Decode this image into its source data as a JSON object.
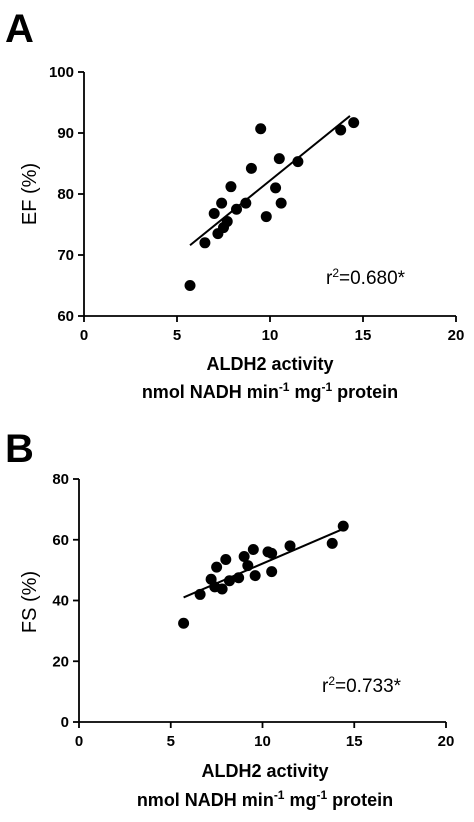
{
  "chart_data": [
    {
      "panel": "A",
      "type": "scatter",
      "ylabel": "EF (%)",
      "xlabel": "ALDH2 activity",
      "xlabel_line2": {
        "pre": "nmol NADH min",
        "sup1": "-1",
        "mid": " mg",
        "sup2": "-1",
        "post": " protein"
      },
      "xlim": [
        0,
        20
      ],
      "ylim": [
        60,
        100
      ],
      "xticks": [
        0,
        5,
        10,
        15,
        20
      ],
      "yticks": [
        60,
        70,
        80,
        90,
        100
      ],
      "annotation": {
        "base": "r",
        "sup": "2",
        "rest": "=0.680*"
      },
      "points": [
        {
          "x": 5.7,
          "y": 65.0
        },
        {
          "x": 6.5,
          "y": 72.0
        },
        {
          "x": 7.0,
          "y": 76.8
        },
        {
          "x": 7.2,
          "y": 73.5
        },
        {
          "x": 7.4,
          "y": 78.5
        },
        {
          "x": 7.5,
          "y": 74.5
        },
        {
          "x": 7.7,
          "y": 75.5
        },
        {
          "x": 7.9,
          "y": 81.2
        },
        {
          "x": 8.2,
          "y": 77.5
        },
        {
          "x": 8.7,
          "y": 78.5
        },
        {
          "x": 9.0,
          "y": 84.2
        },
        {
          "x": 9.5,
          "y": 90.7
        },
        {
          "x": 9.8,
          "y": 76.3
        },
        {
          "x": 10.3,
          "y": 81.0
        },
        {
          "x": 10.5,
          "y": 85.8
        },
        {
          "x": 10.6,
          "y": 78.5
        },
        {
          "x": 11.5,
          "y": 85.3
        },
        {
          "x": 13.8,
          "y": 90.5
        },
        {
          "x": 14.5,
          "y": 91.7
        }
      ],
      "regression": {
        "x1": 5.7,
        "y1": 71.6,
        "x2": 14.3,
        "y2": 92.8
      }
    },
    {
      "panel": "B",
      "type": "scatter",
      "ylabel": "FS (%)",
      "xlabel": "ALDH2 activity",
      "xlabel_line2": {
        "pre": "nmol NADH min",
        "sup1": "-1",
        "mid": " mg",
        "sup2": "-1",
        "post": " protein"
      },
      "xlim": [
        0,
        20
      ],
      "ylim": [
        0,
        80
      ],
      "xticks": [
        0,
        5,
        10,
        15,
        20
      ],
      "yticks": [
        0,
        20,
        40,
        60,
        80
      ],
      "annotation": {
        "base": "r",
        "sup": "2",
        "rest": "=0.733*"
      },
      "points": [
        {
          "x": 5.7,
          "y": 32.5
        },
        {
          "x": 6.6,
          "y": 42.0
        },
        {
          "x": 7.2,
          "y": 47.0
        },
        {
          "x": 7.4,
          "y": 44.5
        },
        {
          "x": 7.5,
          "y": 51.0
        },
        {
          "x": 7.8,
          "y": 43.8
        },
        {
          "x": 8.0,
          "y": 53.5
        },
        {
          "x": 8.2,
          "y": 46.5
        },
        {
          "x": 8.7,
          "y": 47.5
        },
        {
          "x": 9.0,
          "y": 54.5
        },
        {
          "x": 9.2,
          "y": 51.5
        },
        {
          "x": 9.5,
          "y": 56.8
        },
        {
          "x": 9.6,
          "y": 48.2
        },
        {
          "x": 10.3,
          "y": 56.0
        },
        {
          "x": 10.5,
          "y": 55.5
        },
        {
          "x": 10.5,
          "y": 49.5
        },
        {
          "x": 11.5,
          "y": 58.0
        },
        {
          "x": 13.8,
          "y": 58.8
        },
        {
          "x": 14.4,
          "y": 64.5
        }
      ],
      "regression": {
        "x1": 5.7,
        "y1": 41.0,
        "x2": 14.3,
        "y2": 63.3
      }
    }
  ]
}
